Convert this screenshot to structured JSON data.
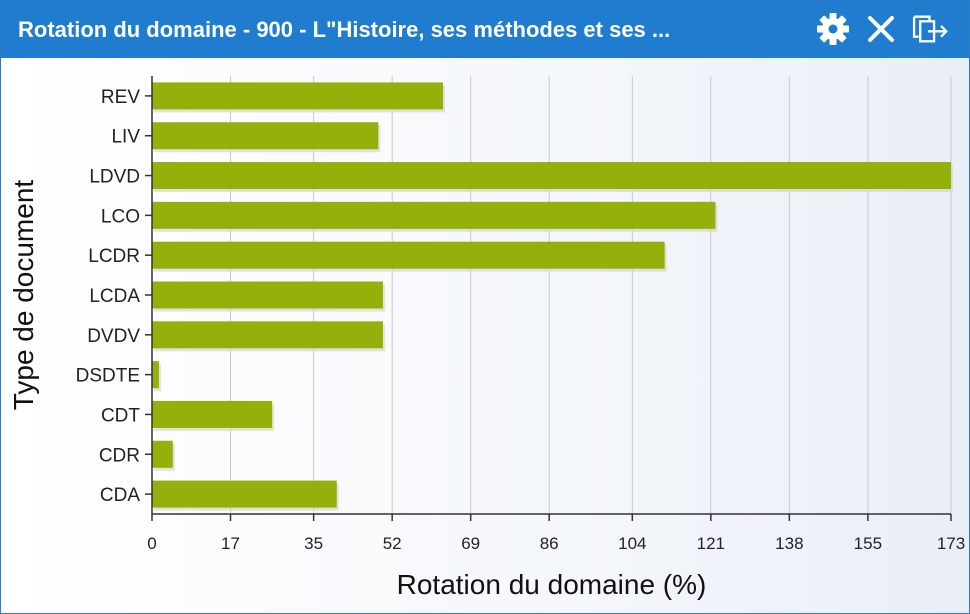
{
  "window": {
    "title": "Rotation du domaine - 900 - L\"Histoire, ses méthodes et ses ...",
    "icons": [
      "gear-icon",
      "close-icon",
      "popout-icon"
    ],
    "header_color": "#1f7ccf"
  },
  "chart_data": {
    "type": "bar",
    "orientation": "horizontal",
    "categories": [
      "REV",
      "LIV",
      "LDVD",
      "LCO",
      "LCDR",
      "LCDA",
      "DVDV",
      "DSDTE",
      "CDT",
      "CDR",
      "CDA"
    ],
    "values": [
      63,
      49,
      173,
      122,
      111,
      50,
      50,
      1.5,
      26,
      4.5,
      40
    ],
    "xlabel": "Rotation du domaine (%)",
    "ylabel": "Type de document",
    "xlim": [
      0,
      173
    ],
    "xticks": [
      "0",
      "17",
      "35",
      "52",
      "69",
      "86",
      "104",
      "121",
      "138",
      "155",
      "173"
    ],
    "bar_color": "#94b00a",
    "grid": "vertical"
  }
}
